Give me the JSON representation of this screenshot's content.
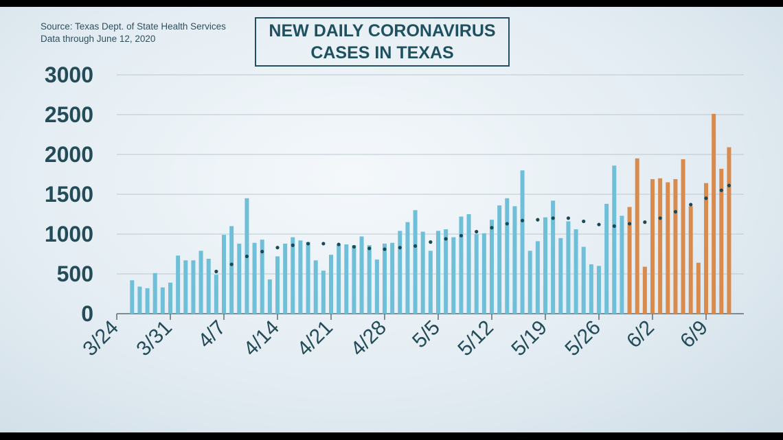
{
  "header": {
    "source_line": "Source: Texas Dept. of State Health Services",
    "data_line": "Data through June 12, 2020",
    "title_line1": "NEW DAILY CORONAVIRUS",
    "title_line2": "CASES IN TEXAS"
  },
  "colors": {
    "blue_bar": "#6fbfd9",
    "orange_bar": "#d98b4e",
    "trend": "#1b4a55",
    "axis": "#5a6d75",
    "text": "#234c58"
  },
  "chart_data": {
    "type": "bar",
    "title": "NEW DAILY CORONAVIRUS CASES IN TEXAS",
    "xlabel": "",
    "ylabel": "",
    "ylim": [
      0,
      3000
    ],
    "yticks": [
      0,
      500,
      1000,
      1500,
      2000,
      2500,
      3000
    ],
    "xtick_labels": [
      "3/24",
      "3/31",
      "4/7",
      "4/14",
      "4/21",
      "4/28",
      "5/5",
      "5/12",
      "5/19",
      "5/26",
      "6/2",
      "6/9"
    ],
    "grid": "horizontal",
    "categories": [
      "3/26",
      "3/27",
      "3/28",
      "3/29",
      "3/30",
      "3/31",
      "4/1",
      "4/2",
      "4/3",
      "4/4",
      "4/5",
      "4/6",
      "4/7",
      "4/8",
      "4/9",
      "4/10",
      "4/11",
      "4/12",
      "4/13",
      "4/14",
      "4/15",
      "4/16",
      "4/17",
      "4/18",
      "4/19",
      "4/20",
      "4/21",
      "4/22",
      "4/23",
      "4/24",
      "4/25",
      "4/26",
      "4/27",
      "4/28",
      "4/29",
      "4/30",
      "5/1",
      "5/2",
      "5/3",
      "5/4",
      "5/5",
      "5/6",
      "5/7",
      "5/8",
      "5/9",
      "5/10",
      "5/11",
      "5/12",
      "5/13",
      "5/14",
      "5/15",
      "5/16",
      "5/17",
      "5/18",
      "5/19",
      "5/20",
      "5/21",
      "5/22",
      "5/23",
      "5/24",
      "5/25",
      "5/26",
      "5/27",
      "5/28",
      "5/29",
      "5/30",
      "5/31",
      "6/1",
      "6/2",
      "6/3",
      "6/4",
      "6/5",
      "6/6",
      "6/7",
      "6/8",
      "6/9",
      "6/10",
      "6/11",
      "6/12"
    ],
    "values": [
      420,
      340,
      320,
      510,
      330,
      390,
      730,
      670,
      670,
      790,
      690,
      490,
      990,
      1100,
      880,
      1450,
      890,
      930,
      430,
      720,
      880,
      960,
      920,
      900,
      670,
      540,
      740,
      870,
      870,
      860,
      970,
      860,
      680,
      880,
      890,
      1040,
      1150,
      1300,
      1030,
      790,
      1040,
      1060,
      960,
      1220,
      1250,
      1000,
      1010,
      1180,
      1360,
      1450,
      1350,
      1800,
      790,
      910,
      1210,
      1420,
      950,
      1160,
      1060,
      840,
      620,
      600,
      1380,
      1860,
      1230,
      1340,
      1950,
      590,
      1690,
      1700,
      1650,
      1690,
      1940,
      1350,
      640,
      1640,
      2510,
      1820,
      2090
    ],
    "bar_colors": [
      "blue",
      "blue",
      "blue",
      "blue",
      "blue",
      "blue",
      "blue",
      "blue",
      "blue",
      "blue",
      "blue",
      "blue",
      "blue",
      "blue",
      "blue",
      "blue",
      "blue",
      "blue",
      "blue",
      "blue",
      "blue",
      "blue",
      "blue",
      "blue",
      "blue",
      "blue",
      "blue",
      "blue",
      "blue",
      "blue",
      "blue",
      "blue",
      "blue",
      "blue",
      "blue",
      "blue",
      "blue",
      "blue",
      "blue",
      "blue",
      "blue",
      "blue",
      "blue",
      "blue",
      "blue",
      "blue",
      "blue",
      "blue",
      "blue",
      "blue",
      "blue",
      "blue",
      "blue",
      "blue",
      "blue",
      "blue",
      "blue",
      "blue",
      "blue",
      "blue",
      "blue",
      "blue",
      "blue",
      "blue",
      "blue",
      "orange",
      "orange",
      "orange",
      "orange",
      "orange",
      "orange",
      "orange",
      "orange",
      "orange",
      "orange",
      "orange",
      "orange",
      "orange",
      "orange"
    ],
    "trend": {
      "style": "dotted",
      "points": [
        {
          "x": "4/6",
          "y": 530
        },
        {
          "x": "4/8",
          "y": 620
        },
        {
          "x": "4/10",
          "y": 720
        },
        {
          "x": "4/12",
          "y": 780
        },
        {
          "x": "4/14",
          "y": 830
        },
        {
          "x": "4/16",
          "y": 860
        },
        {
          "x": "4/18",
          "y": 880
        },
        {
          "x": "4/20",
          "y": 880
        },
        {
          "x": "4/22",
          "y": 870
        },
        {
          "x": "4/24",
          "y": 840
        },
        {
          "x": "4/26",
          "y": 820
        },
        {
          "x": "4/28",
          "y": 810
        },
        {
          "x": "4/30",
          "y": 830
        },
        {
          "x": "5/2",
          "y": 850
        },
        {
          "x": "5/4",
          "y": 900
        },
        {
          "x": "5/6",
          "y": 940
        },
        {
          "x": "5/8",
          "y": 980
        },
        {
          "x": "5/10",
          "y": 1030
        },
        {
          "x": "5/12",
          "y": 1080
        },
        {
          "x": "5/14",
          "y": 1130
        },
        {
          "x": "5/16",
          "y": 1170
        },
        {
          "x": "5/18",
          "y": 1180
        },
        {
          "x": "5/20",
          "y": 1200
        },
        {
          "x": "5/22",
          "y": 1200
        },
        {
          "x": "5/24",
          "y": 1160
        },
        {
          "x": "5/26",
          "y": 1120
        },
        {
          "x": "5/28",
          "y": 1100
        },
        {
          "x": "5/30",
          "y": 1130
        },
        {
          "x": "6/1",
          "y": 1150
        },
        {
          "x": "6/3",
          "y": 1200
        },
        {
          "x": "6/5",
          "y": 1280
        },
        {
          "x": "6/7",
          "y": 1370
        },
        {
          "x": "6/9",
          "y": 1450
        },
        {
          "x": "6/11",
          "y": 1550
        },
        {
          "x": "6/12",
          "y": 1610
        }
      ]
    }
  }
}
